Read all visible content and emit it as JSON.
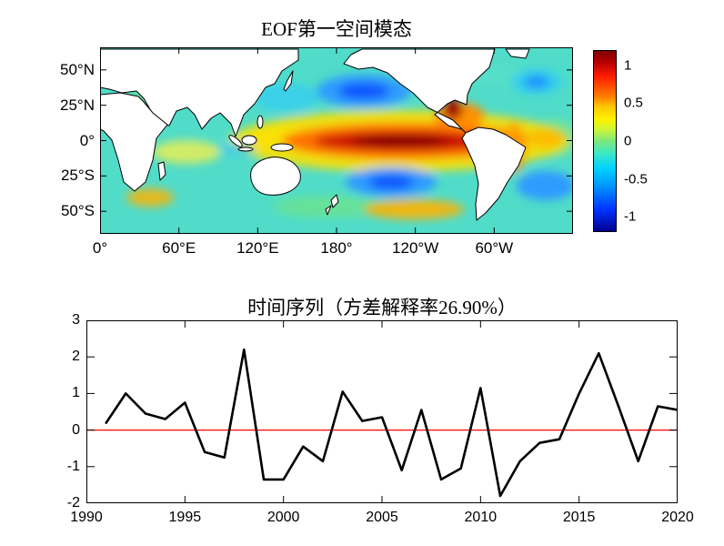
{
  "figure": {
    "background": "#ffffff",
    "axis_color": "#000000"
  },
  "chart_data": [
    {
      "type": "heatmap",
      "panel": "top",
      "title": "EOF第一空间模态",
      "projection": "equirectangular, lon 0°-360°, lat 66°S-66°N",
      "x_ticks": [
        {
          "label": "0°",
          "lon": 0
        },
        {
          "label": "60°E",
          "lon": 60
        },
        {
          "label": "120°E",
          "lon": 120
        },
        {
          "label": "180°",
          "lon": 180
        },
        {
          "label": "120°W",
          "lon": 240
        },
        {
          "label": "60°W",
          "lon": 300
        }
      ],
      "y_ticks": [
        {
          "label": "50°N",
          "lat": 50
        },
        {
          "label": "25°N",
          "lat": 25
        },
        {
          "label": "0°",
          "lat": 0
        },
        {
          "label": "25°S",
          "lat": -25
        },
        {
          "label": "50°S",
          "lat": -50
        }
      ],
      "colorbar": {
        "colormap": "jet",
        "range": [
          -1.2,
          1.2
        ],
        "ticks": [
          {
            "label": "1",
            "value": 1
          },
          {
            "label": "0.5",
            "value": 0.5
          },
          {
            "label": "0",
            "value": 0
          },
          {
            "label": "-0.5",
            "value": -0.5
          },
          {
            "label": "-1",
            "value": -1
          }
        ]
      },
      "features": [
        "strong positive anomaly tongue (red, >1) along the equatorial central-eastern Pacific ~170E-90W",
        "negative centers (blue, ~-0.8) in the central North Pacific and central South Pacific",
        "weak positive (yellow/orange) horseshoe in the far South Pacific and along the American coast",
        "near-zero cyan/green values over the Indian and Atlantic basins"
      ]
    },
    {
      "type": "line",
      "panel": "bottom",
      "title": "时间序列（方差解释率26.90%）",
      "variance_explained_pct": 26.9,
      "x": [
        1991,
        1992,
        1993,
        1994,
        1995,
        1996,
        1997,
        1998,
        1999,
        2000,
        2001,
        2002,
        2003,
        2004,
        2005,
        2006,
        2007,
        2008,
        2009,
        2010,
        2011,
        2012,
        2013,
        2014,
        2015,
        2016,
        2017,
        2018,
        2019,
        2020
      ],
      "values": [
        0.2,
        1.0,
        0.45,
        0.3,
        0.75,
        -0.6,
        -0.75,
        2.2,
        -1.35,
        -1.35,
        -0.45,
        -0.85,
        1.05,
        0.25,
        0.35,
        -1.1,
        0.55,
        -1.35,
        -1.05,
        1.15,
        -1.8,
        -0.85,
        -0.35,
        -0.25,
        1.0,
        2.1,
        0.65,
        -0.85,
        0.65,
        0.55
      ],
      "xlim": [
        1990,
        2020
      ],
      "ylim": [
        -2,
        3
      ],
      "x_tick_labels": [
        "1990",
        "1995",
        "2000",
        "2005",
        "2010",
        "2015",
        "2020"
      ],
      "y_tick_labels": [
        "3",
        "2",
        "1",
        "0",
        "-1",
        "-2"
      ],
      "line_color": "#000000",
      "zero_line": {
        "y": 0,
        "color": "#ff0000"
      }
    }
  ]
}
